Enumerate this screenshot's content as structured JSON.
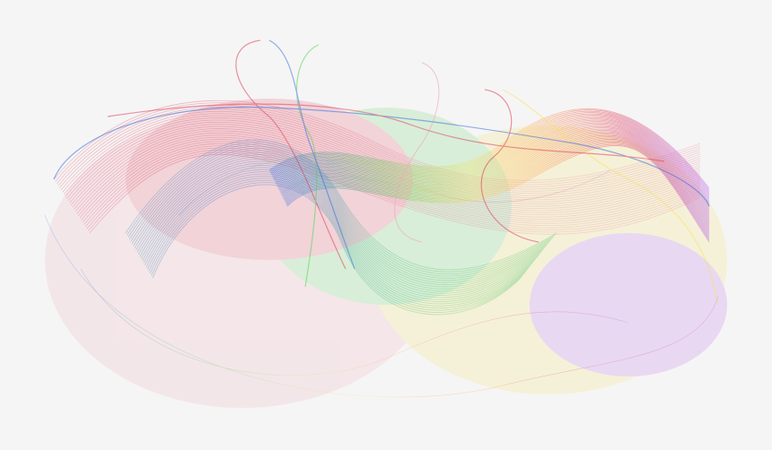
{
  "image": {
    "background": "#f5f5f5",
    "palette": [
      "#e0405a",
      "#ff9a3c",
      "#f7e35a",
      "#59d15a",
      "#3a6fe0",
      "#b45ae8",
      "#f0a8b8"
    ]
  }
}
